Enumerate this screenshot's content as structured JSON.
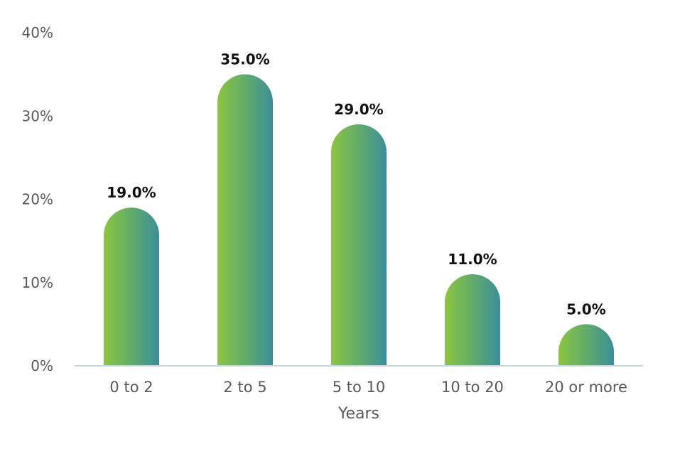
{
  "chart_data": {
    "type": "bar",
    "categories": [
      "0 to 2",
      "2 to 5",
      "5 to 10",
      "10 to 20",
      "20 or more"
    ],
    "values": [
      19.0,
      35.0,
      29.0,
      11.0,
      5.0
    ],
    "value_labels": [
      "19.0%",
      "35.0%",
      "29.0%",
      "11.0%",
      "5.0%"
    ],
    "title": "",
    "xlabel": "Years",
    "ylabel": "",
    "ylim": [
      0,
      40
    ],
    "yticks": [
      0,
      10,
      20,
      30,
      40
    ],
    "ytick_labels": [
      "0%",
      "10%",
      "20%",
      "30%",
      "40%"
    ],
    "grid": false,
    "legend": "none",
    "colors": {
      "bar_gradient_start": "#8cc63f",
      "bar_gradient_end": "#3a8f98",
      "axis_line": "#c9d6dc",
      "tick_text": "#595959",
      "data_label_text": "#111111"
    }
  }
}
